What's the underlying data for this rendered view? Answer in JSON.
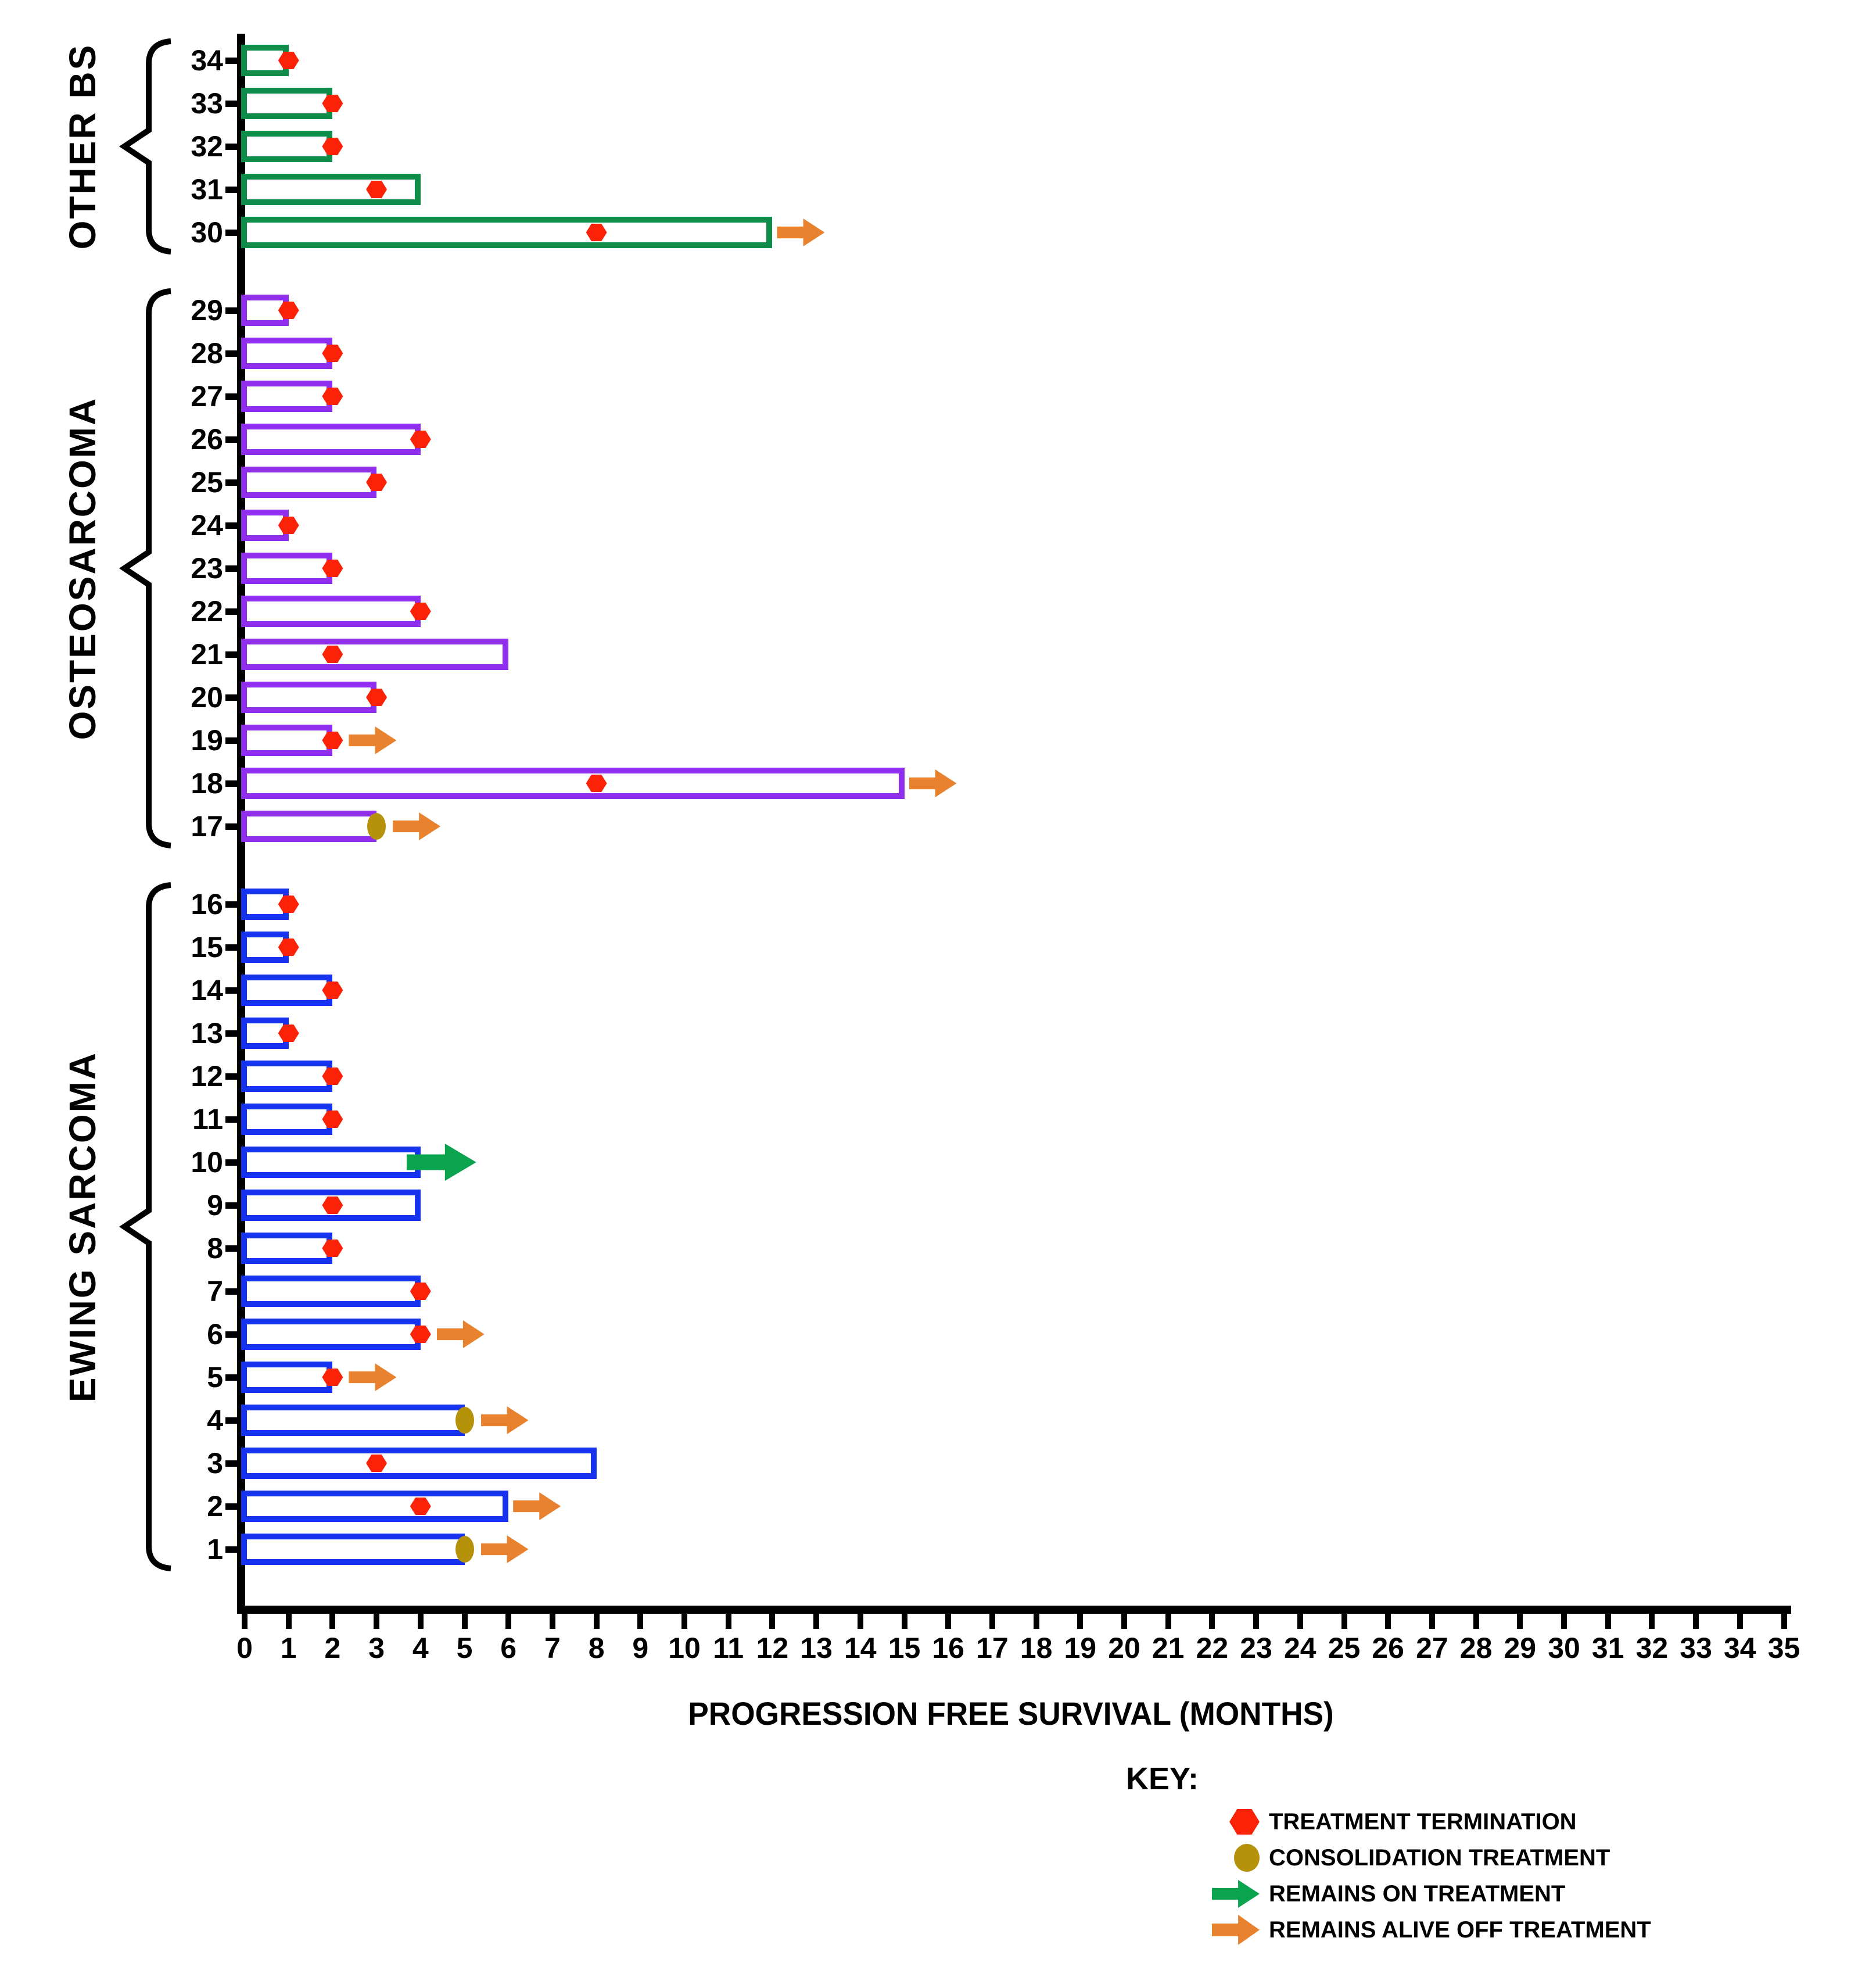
{
  "chart_data": {
    "type": "bar",
    "subtype": "swimmer-plot",
    "xlabel": "PROGRESSION FREE SURVIVAL (MONTHS)",
    "x_axis": {
      "min": 0,
      "max": 35,
      "step": 1
    },
    "grid": false,
    "orientation": "horizontal",
    "groups": [
      {
        "name": "OTHER BS",
        "bar_color": "#0E8C4A",
        "patients": [
          {
            "id": 34,
            "pfs_months": 1,
            "event": "termination",
            "event_month": 1,
            "arrow": null
          },
          {
            "id": 33,
            "pfs_months": 2,
            "event": "termination",
            "event_month": 2,
            "arrow": null
          },
          {
            "id": 32,
            "pfs_months": 2,
            "event": "termination",
            "event_month": 2,
            "arrow": null
          },
          {
            "id": 31,
            "pfs_months": 4,
            "event": "termination",
            "event_month": 3,
            "arrow": null
          },
          {
            "id": 30,
            "pfs_months": 12,
            "event": "termination",
            "event_month": 8,
            "arrow": "off_treatment"
          }
        ]
      },
      {
        "name": "OSTEOSARCOMA",
        "bar_color": "#8F2EEC",
        "patients": [
          {
            "id": 29,
            "pfs_months": 1,
            "event": "termination",
            "event_month": 1,
            "arrow": null
          },
          {
            "id": 28,
            "pfs_months": 2,
            "event": "termination",
            "event_month": 2,
            "arrow": null
          },
          {
            "id": 27,
            "pfs_months": 2,
            "event": "termination",
            "event_month": 2,
            "arrow": null
          },
          {
            "id": 26,
            "pfs_months": 4,
            "event": "termination",
            "event_month": 4,
            "arrow": null
          },
          {
            "id": 25,
            "pfs_months": 3,
            "event": "termination",
            "event_month": 3,
            "arrow": null
          },
          {
            "id": 24,
            "pfs_months": 1,
            "event": "termination",
            "event_month": 1,
            "arrow": null
          },
          {
            "id": 23,
            "pfs_months": 2,
            "event": "termination",
            "event_month": 2,
            "arrow": null
          },
          {
            "id": 22,
            "pfs_months": 4,
            "event": "termination",
            "event_month": 4,
            "arrow": null
          },
          {
            "id": 21,
            "pfs_months": 6,
            "event": "termination",
            "event_month": 2,
            "arrow": null
          },
          {
            "id": 20,
            "pfs_months": 3,
            "event": "termination",
            "event_month": 3,
            "arrow": null
          },
          {
            "id": 19,
            "pfs_months": 2,
            "event": "termination",
            "event_month": 2,
            "arrow": "off_treatment"
          },
          {
            "id": 18,
            "pfs_months": 15,
            "event": "termination",
            "event_month": 8,
            "arrow": "off_treatment"
          },
          {
            "id": 17,
            "pfs_months": 3,
            "event": "consolidation",
            "event_month": 3,
            "arrow": "off_treatment"
          }
        ]
      },
      {
        "name": "EWING SARCOMA",
        "bar_color": "#1733F0",
        "patients": [
          {
            "id": 16,
            "pfs_months": 1,
            "event": "termination",
            "event_month": 1,
            "arrow": null
          },
          {
            "id": 15,
            "pfs_months": 1,
            "event": "termination",
            "event_month": 1,
            "arrow": null
          },
          {
            "id": 14,
            "pfs_months": 2,
            "event": "termination",
            "event_month": 2,
            "arrow": null
          },
          {
            "id": 13,
            "pfs_months": 1,
            "event": "termination",
            "event_month": 1,
            "arrow": null
          },
          {
            "id": 12,
            "pfs_months": 2,
            "event": "termination",
            "event_month": 2,
            "arrow": null
          },
          {
            "id": 11,
            "pfs_months": 2,
            "event": "termination",
            "event_month": 2,
            "arrow": null
          },
          {
            "id": 10,
            "pfs_months": 4,
            "event": null,
            "event_month": null,
            "arrow": "on_treatment"
          },
          {
            "id": 9,
            "pfs_months": 4,
            "event": "termination",
            "event_month": 2,
            "arrow": null
          },
          {
            "id": 8,
            "pfs_months": 2,
            "event": "termination",
            "event_month": 2,
            "arrow": null
          },
          {
            "id": 7,
            "pfs_months": 4,
            "event": "termination",
            "event_month": 4,
            "arrow": null
          },
          {
            "id": 6,
            "pfs_months": 4,
            "event": "termination",
            "event_month": 4,
            "arrow": "off_treatment"
          },
          {
            "id": 5,
            "pfs_months": 2,
            "event": "termination",
            "event_month": 2,
            "arrow": "off_treatment"
          },
          {
            "id": 4,
            "pfs_months": 5,
            "event": "consolidation",
            "event_month": 5,
            "arrow": "off_treatment"
          },
          {
            "id": 3,
            "pfs_months": 8,
            "event": "termination",
            "event_month": 3,
            "arrow": null
          },
          {
            "id": 2,
            "pfs_months": 6,
            "event": "termination",
            "event_month": 4,
            "arrow": "off_treatment"
          },
          {
            "id": 1,
            "pfs_months": 5,
            "event": "consolidation",
            "event_month": 5,
            "arrow": "off_treatment"
          }
        ]
      }
    ]
  },
  "legend": {
    "title": "KEY:",
    "items": [
      {
        "marker": "red-hexagon-icon",
        "label": "TREATMENT TERMINATION",
        "color": "#FB2208"
      },
      {
        "marker": "olive-circle-icon",
        "label": "CONSOLIDATION TREATMENT",
        "color": "#B5920A"
      },
      {
        "marker": "green-arrow-icon",
        "label": "REMAINS ON TREATMENT",
        "color": "#0AA34E"
      },
      {
        "marker": "orange-arrow-icon",
        "label": "REMAINS ALIVE OFF TREATMENT",
        "color": "#E8822F"
      }
    ]
  },
  "colors": {
    "termination_marker": "#FB2208",
    "consolidation_marker": "#B5920A",
    "on_treatment_arrow": "#0AA34E",
    "off_treatment_arrow": "#E8822F",
    "axis": "#000000"
  }
}
